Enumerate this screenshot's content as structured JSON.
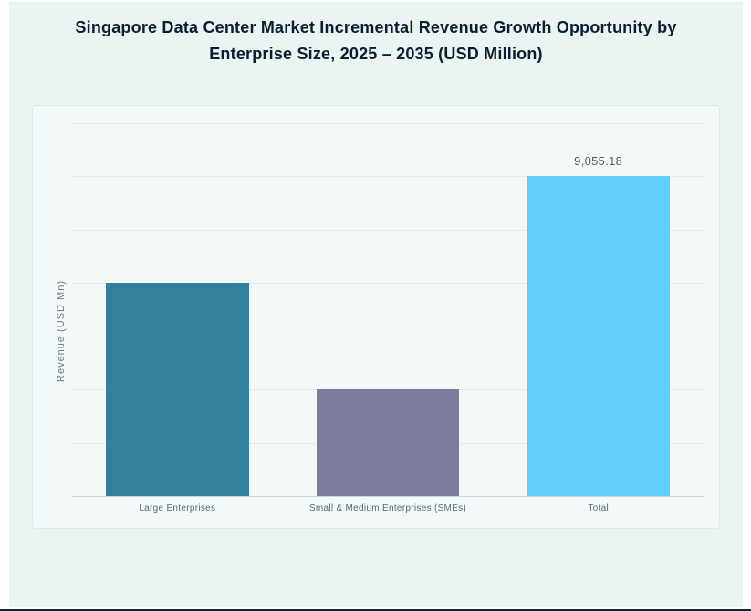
{
  "title_line1": "Singapore Data Center Market Incremental Revenue Growth Opportunity by",
  "title_line2": "Enterprise Size, 2025 – 2035 (USD Million)",
  "chart_data": {
    "type": "bar",
    "title": "Singapore Data Center Market Incremental Revenue Growth Opportunity by Enterprise Size, 2025 – 2035 (USD Million)",
    "categories": [
      "Large Enterprises",
      "Small & Medium Enterprises (SMEs)",
      "Total"
    ],
    "values": [
      6036.79,
      3018.39,
      9055.18
    ],
    "value_labels": [
      "",
      "",
      "9,055.18"
    ],
    "bar_colors": [
      "#337f9e",
      "#7d7b9a",
      "#62cefa"
    ],
    "xlabel": "",
    "ylabel": "Revenue (USD Mn)",
    "ylim": [
      0,
      10564.4
    ],
    "gridline_step": 1509.2,
    "grid": true,
    "legend": false,
    "annotations": [
      "Only the Total bar shows a data label; Large Enterprises and SMEs values estimated from gridlines (bars span 4 and 2 grid units of the 6-unit Total)"
    ]
  },
  "colors": {
    "page_background": "#e9f4f3",
    "panel_background": "#f2f9f8",
    "panel_border": "#dde8e8",
    "gridline": "#e2eaea",
    "axis_line": "#ccd8da",
    "title_text": "#0d1d30",
    "axis_text": "#5c6870",
    "value_text": "#4f5a64",
    "bar_large_enterprises": "#337f9e",
    "bar_smes": "#7d7b9a",
    "bar_total": "#62cefa",
    "bottom_edge": "#0e2633"
  }
}
